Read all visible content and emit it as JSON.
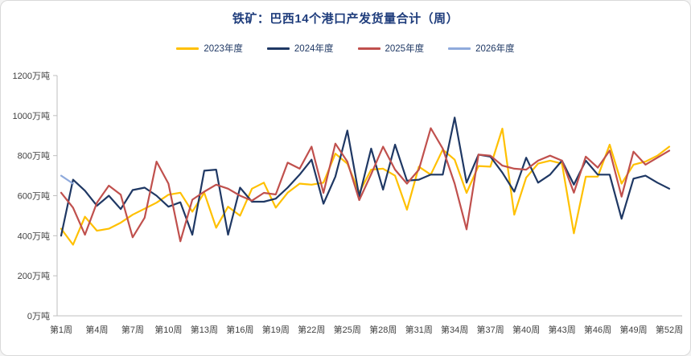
{
  "chart": {
    "title": "铁矿：巴西14个港口产发货量合计（周）",
    "title_color": "#1f3d7c",
    "legend_text_color": "#1f3864",
    "axis_line_color": "#bfbfbf",
    "tick_label_color": "#404040",
    "background_color": "#ffffff",
    "border_color": "#d9d9d9"
  },
  "chart_data": {
    "type": "line",
    "title": "铁矿：巴西14个港口产发货量合计（周）",
    "x_unit": "周",
    "weeks": 52,
    "ylim": [
      0,
      1200
    ],
    "y_tick_step": 200,
    "y_tick_labels": [
      "0万吨",
      "200万吨",
      "400万吨",
      "600万吨",
      "800万吨",
      "1000万吨",
      "1200万吨"
    ],
    "x_tick_weeks": [
      1,
      4,
      7,
      10,
      13,
      16,
      19,
      22,
      25,
      28,
      31,
      34,
      37,
      40,
      43,
      46,
      49,
      52
    ],
    "x_tick_labels": [
      "第1周",
      "第4周",
      "第7周",
      "第10周",
      "第13周",
      "第16周",
      "第19周",
      "第22周",
      "第25周",
      "第28周",
      "第31周",
      "第34周",
      "第37周",
      "第40周",
      "第43周",
      "第46周",
      "第49周",
      "第52周"
    ],
    "grid": false,
    "legend_position": "top",
    "series": [
      {
        "name": "2023年度",
        "color": "#ffc000",
        "values": [
          435,
          355,
          495,
          425,
          435,
          465,
          505,
          535,
          565,
          605,
          615,
          520,
          615,
          440,
          545,
          500,
          635,
          665,
          540,
          615,
          660,
          655,
          665,
          810,
          760,
          615,
          730,
          735,
          700,
          530,
          745,
          705,
          830,
          780,
          614,
          748,
          745,
          935,
          505,
          690,
          760,
          775,
          760,
          412,
          695,
          695,
          855,
          660,
          755,
          770,
          800,
          845
        ]
      },
      {
        "name": "2024年度",
        "color": "#1f3864",
        "values": [
          400,
          680,
          625,
          550,
          600,
          533,
          628,
          640,
          600,
          545,
          567,
          405,
          725,
          730,
          405,
          640,
          570,
          570,
          585,
          640,
          705,
          780,
          560,
          695,
          925,
          595,
          835,
          630,
          855,
          675,
          680,
          705,
          705,
          990,
          665,
          805,
          795,
          715,
          620,
          790,
          665,
          705,
          775,
          655,
          775,
          705,
          705,
          485,
          685,
          700,
          665,
          635
        ]
      },
      {
        "name": "2025年度",
        "color": "#c0504d",
        "values": [
          615,
          540,
          405,
          565,
          650,
          605,
          392,
          490,
          770,
          660,
          372,
          580,
          620,
          655,
          635,
          600,
          575,
          614,
          606,
          765,
          735,
          845,
          614,
          860,
          770,
          578,
          707,
          845,
          730,
          660,
          730,
          937,
          835,
          660,
          432,
          805,
          800,
          750,
          735,
          730,
          775,
          800,
          775,
          615,
          795,
          740,
          825,
          595,
          820,
          755,
          790,
          825
        ]
      },
      {
        "name": "2026年度",
        "color": "#8faadc",
        "values": [
          700,
          660,
          null,
          null,
          null,
          null,
          null,
          null,
          null,
          null,
          null,
          null,
          null,
          null,
          null,
          null,
          null,
          null,
          null,
          null,
          null,
          null,
          null,
          null,
          null,
          null,
          null,
          null,
          null,
          null,
          null,
          null,
          null,
          null,
          null,
          null,
          null,
          null,
          null,
          null,
          null,
          null,
          null,
          null,
          null,
          null,
          null,
          null,
          null,
          null,
          null,
          null
        ]
      }
    ]
  }
}
